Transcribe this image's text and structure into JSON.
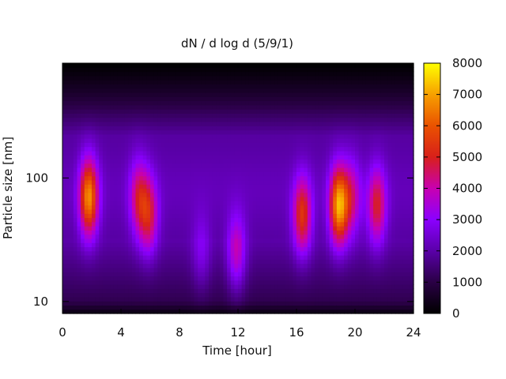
{
  "chart_data": {
    "type": "heatmap",
    "title": "dN / d log d (5/9/1)",
    "xlabel": "Time [hour]",
    "ylabel": "Particle size [nm]",
    "x_ticks": [
      0,
      4,
      8,
      12,
      16,
      20,
      24
    ],
    "y_ticks": [
      10,
      100
    ],
    "xlim": [
      0,
      24
    ],
    "ylim": [
      8,
      850
    ],
    "y_scale": "log",
    "colorbar": {
      "ticks": [
        0,
        1000,
        2000,
        3000,
        4000,
        5000,
        6000,
        7000,
        8000
      ],
      "range": [
        0,
        8000
      ],
      "palette": "black-purple-red-yellow"
    },
    "grid": false,
    "background_level": 1900,
    "events": [
      {
        "time": 1.8,
        "size_nm": 70,
        "peak": 6500
      },
      {
        "time": 5.2,
        "size_nm": 70,
        "peak": 4200
      },
      {
        "time": 5.9,
        "size_nm": 50,
        "peak": 4600
      },
      {
        "time": 9.5,
        "size_nm": 25,
        "peak": 2900
      },
      {
        "time": 11.9,
        "size_nm": 25,
        "peak": 4000
      },
      {
        "time": 16.4,
        "size_nm": 50,
        "peak": 5200
      },
      {
        "time": 18.9,
        "size_nm": 60,
        "peak": 6900
      },
      {
        "time": 19.8,
        "size_nm": 70,
        "peak": 3800
      },
      {
        "time": 21.5,
        "size_nm": 60,
        "peak": 4700
      }
    ]
  }
}
